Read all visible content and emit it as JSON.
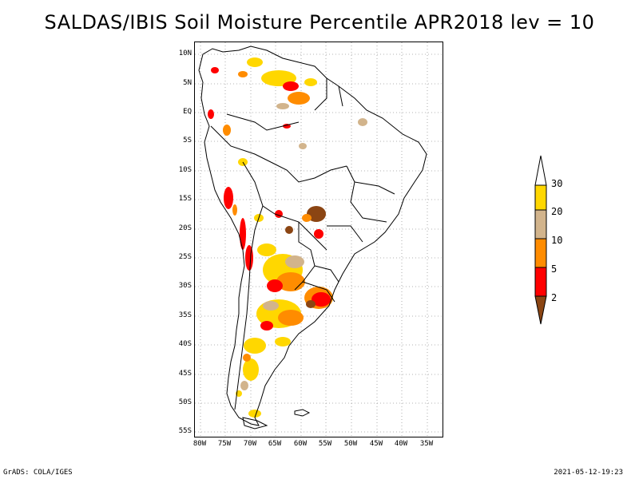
{
  "title": "SALDAS/IBIS Soil Moisture Percentile APR2018 lev = 10",
  "map": {
    "lat_labels": [
      "10N",
      "5N",
      "EQ",
      "5S",
      "10S",
      "15S",
      "20S",
      "25S",
      "30S",
      "35S",
      "40S",
      "45S",
      "50S",
      "55S"
    ],
    "lon_labels": [
      "80W",
      "75W",
      "70W",
      "65W",
      "60W",
      "55W",
      "50W",
      "45W",
      "40W",
      "35W"
    ],
    "grid": true
  },
  "legend": {
    "levels": [
      "2",
      "5",
      "10",
      "20",
      "30"
    ],
    "colors": [
      "#8b4513",
      "#ff0000",
      "#ff8c00",
      "#d2b48c",
      "#ffd700",
      "#ffffff"
    ]
  },
  "footer": {
    "left": "GrADS: COLA/IGES",
    "right": "2021-05-12-19:23"
  }
}
